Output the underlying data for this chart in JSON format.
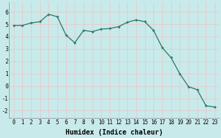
{
  "x": [
    0,
    1,
    2,
    3,
    4,
    5,
    6,
    7,
    8,
    9,
    10,
    11,
    12,
    13,
    14,
    15,
    16,
    17,
    18,
    19,
    20,
    21,
    22,
    23
  ],
  "y": [
    4.9,
    4.9,
    5.1,
    5.2,
    5.8,
    5.6,
    4.1,
    3.5,
    4.5,
    4.4,
    4.6,
    4.65,
    4.8,
    5.15,
    5.35,
    5.2,
    4.5,
    3.1,
    2.3,
    1.0,
    -0.05,
    -0.3,
    -1.6,
    -1.7
  ],
  "line_color": "#2e7d6e",
  "marker": "D",
  "marker_size": 1.8,
  "line_width": 1.0,
  "bg_color": "#c8eaea",
  "grid_color": "#e8c8c8",
  "xlabel": "Humidex (Indice chaleur)",
  "xlabel_fontsize": 7,
  "xlabel_bold": true,
  "yticks": [
    -2,
    -1,
    0,
    1,
    2,
    3,
    4,
    5,
    6
  ],
  "xtick_labels": [
    "0",
    "1",
    "2",
    "3",
    "4",
    "5",
    "6",
    "7",
    "8",
    "9",
    "10",
    "11",
    "12",
    "13",
    "14",
    "15",
    "16",
    "17",
    "18",
    "19",
    "20",
    "21",
    "22",
    "23"
  ],
  "ylim": [
    -2.6,
    6.8
  ],
  "xlim": [
    -0.5,
    23.5
  ],
  "tick_fontsize": 5.5
}
